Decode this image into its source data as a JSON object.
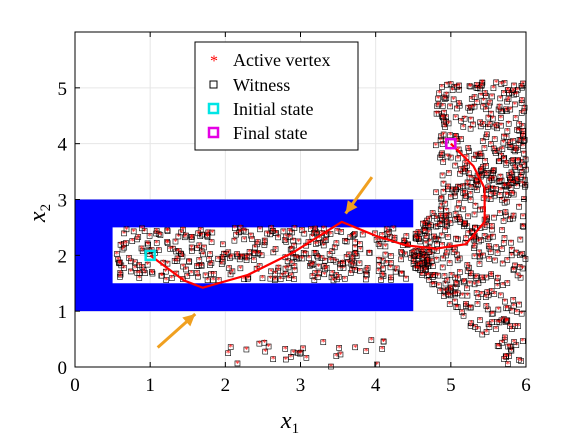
{
  "chart_data": {
    "type": "scatter",
    "title": "",
    "xlabel": "x",
    "xlabel_sub": "1",
    "ylabel": "x",
    "ylabel_sub": "2",
    "xlim": [
      0,
      6
    ],
    "ylim": [
      0,
      6
    ],
    "x_ticks": [
      0,
      1,
      2,
      3,
      4,
      5,
      6
    ],
    "y_ticks": [
      0,
      1,
      2,
      3,
      4,
      5
    ],
    "grid": true,
    "legend_position": "top-center",
    "legend": [
      {
        "label": "Active vertex",
        "marker": "asterisk",
        "color": "#ff0000"
      },
      {
        "label": "Witness",
        "marker": "square",
        "color": "#000000"
      },
      {
        "label": "Initial state",
        "marker": "square-bold",
        "color": "#00e5e5"
      },
      {
        "label": "Final state",
        "marker": "square-bold",
        "color": "#e500e5"
      }
    ],
    "obstacle": {
      "color": "#0000ff",
      "outer": {
        "x": [
          0,
          4.5
        ],
        "y": [
          1,
          3
        ]
      },
      "inner": {
        "x": [
          0.5,
          4.5
        ],
        "y": [
          1.5,
          2.5
        ]
      }
    },
    "initial_state": {
      "x": 1.0,
      "y": 2.0
    },
    "final_state": {
      "x": 5.0,
      "y": 4.0
    },
    "path": {
      "color": "#ff0000",
      "x": [
        1.0,
        1.2,
        1.45,
        1.7,
        2.3,
        2.9,
        3.55,
        4.0,
        4.4,
        4.8,
        5.2,
        5.45,
        5.45,
        5.3,
        5.0
      ],
      "y": [
        2.0,
        1.8,
        1.55,
        1.42,
        1.65,
        2.05,
        2.6,
        2.35,
        2.18,
        2.12,
        2.2,
        2.6,
        3.2,
        3.6,
        4.0
      ]
    },
    "annotations": [
      {
        "type": "arrow",
        "color": "#f0a020",
        "from": [
          1.1,
          0.35
        ],
        "to": [
          1.6,
          0.95
        ]
      },
      {
        "type": "arrow",
        "color": "#f0a020",
        "from": [
          3.95,
          3.4
        ],
        "to": [
          3.6,
          2.75
        ]
      }
    ],
    "point_clusters": [
      {
        "region": "inside corridor",
        "x": [
          0.55,
          4.5
        ],
        "y": [
          1.55,
          2.55
        ],
        "count": 380
      },
      {
        "region": "right fan",
        "x": [
          4.5,
          6.0
        ],
        "y": [
          0.0,
          5.1
        ],
        "count": 420
      },
      {
        "region": "upper right",
        "x": [
          4.8,
          6.0
        ],
        "y": [
          3.0,
          5.1
        ],
        "count": 260
      },
      {
        "region": "bottom scattered",
        "x": [
          2.0,
          4.2
        ],
        "y": [
          0.0,
          0.5
        ],
        "count": 30
      }
    ]
  }
}
